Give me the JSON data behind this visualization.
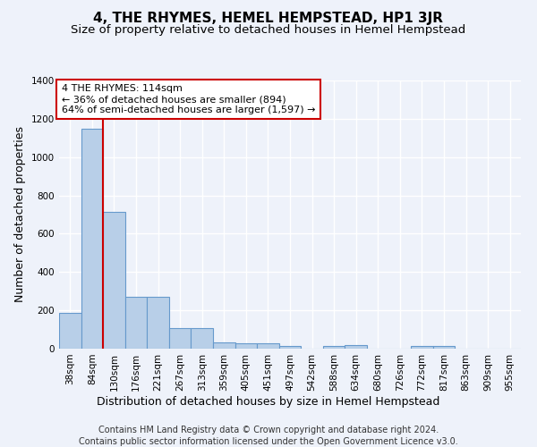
{
  "title": "4, THE RHYMES, HEMEL HEMPSTEAD, HP1 3JR",
  "subtitle": "Size of property relative to detached houses in Hemel Hempstead",
  "xlabel": "Distribution of detached houses by size in Hemel Hempstead",
  "ylabel": "Number of detached properties",
  "categories": [
    "38sqm",
    "84sqm",
    "130sqm",
    "176sqm",
    "221sqm",
    "267sqm",
    "313sqm",
    "359sqm",
    "405sqm",
    "451sqm",
    "497sqm",
    "542sqm",
    "588sqm",
    "634sqm",
    "680sqm",
    "726sqm",
    "772sqm",
    "817sqm",
    "863sqm",
    "909sqm",
    "955sqm"
  ],
  "values": [
    185,
    1150,
    715,
    270,
    270,
    108,
    108,
    35,
    28,
    28,
    13,
    0,
    13,
    20,
    0,
    0,
    13,
    13,
    0,
    0,
    0
  ],
  "bar_color": "#b8cfe8",
  "bar_edge_color": "#6699cc",
  "vline_x_pos": 1.5,
  "vline_color": "#cc0000",
  "annotation_text": "4 THE RHYMES: 114sqm\n← 36% of detached houses are smaller (894)\n64% of semi-detached houses are larger (1,597) →",
  "annotation_box_color": "#cc0000",
  "ylim": [
    0,
    1400
  ],
  "yticks": [
    0,
    200,
    400,
    600,
    800,
    1000,
    1200,
    1400
  ],
  "footer1": "Contains HM Land Registry data © Crown copyright and database right 2024.",
  "footer2": "Contains public sector information licensed under the Open Government Licence v3.0.",
  "background_color": "#eef2fa",
  "grid_color": "#ffffff",
  "title_fontsize": 11,
  "subtitle_fontsize": 9.5,
  "ylabel_fontsize": 9,
  "xlabel_fontsize": 9,
  "tick_fontsize": 7.5,
  "annotation_fontsize": 8,
  "footer_fontsize": 7
}
